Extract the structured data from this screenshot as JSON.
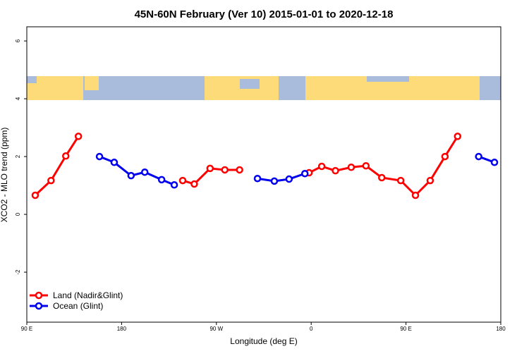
{
  "chart_data": {
    "type": "line",
    "title": "45N-60N February (Ver 10)   2015-01-01 to 2020-12-18",
    "x_label": "Longitude (deg E)",
    "y_label": "XCO2 - MLO trend (ppm)",
    "x": [
      98,
      113,
      127,
      139,
      159,
      173,
      189,
      202,
      218,
      230,
      238,
      249,
      264,
      278,
      292,
      309,
      325,
      339,
      354,
      358,
      370,
      383,
      398,
      412,
      427,
      445,
      459,
      473,
      487,
      499,
      519,
      534
    ],
    "series": [
      {
        "name": "Land (Nadir&Glint)",
        "color": "#ff0000",
        "values": [
          0.66,
          1.17,
          2.02,
          2.7,
          null,
          null,
          null,
          null,
          null,
          null,
          1.17,
          1.05,
          1.59,
          1.54,
          1.54,
          null,
          null,
          null,
          null,
          1.44,
          1.66,
          1.51,
          1.63,
          1.68,
          1.27,
          1.17,
          0.66,
          1.17,
          2.0,
          2.7,
          null,
          null
        ]
      },
      {
        "name": "Ocean (Glint)",
        "color": "#0000ee",
        "values": [
          null,
          null,
          null,
          null,
          2.0,
          1.8,
          1.34,
          1.46,
          1.2,
          1.02,
          null,
          null,
          null,
          null,
          null,
          1.24,
          1.15,
          1.22,
          1.41,
          null,
          null,
          null,
          null,
          null,
          null,
          null,
          null,
          null,
          null,
          null,
          2.0,
          1.8
        ]
      }
    ],
    "xlim": [
      90,
      540
    ],
    "xticks": [
      {
        "value": 90,
        "label": "90 E"
      },
      {
        "value": 180,
        "label": "180"
      },
      {
        "value": 270,
        "label": "90 W"
      },
      {
        "value": 360,
        "label": "0"
      },
      {
        "value": 450,
        "label": "90 E"
      },
      {
        "value": 540,
        "label": "180"
      }
    ],
    "ylim": [
      -3.73,
      6.49
    ],
    "yticks": [
      -2,
      0,
      2,
      4,
      6
    ],
    "legend": "bottom-left"
  }
}
